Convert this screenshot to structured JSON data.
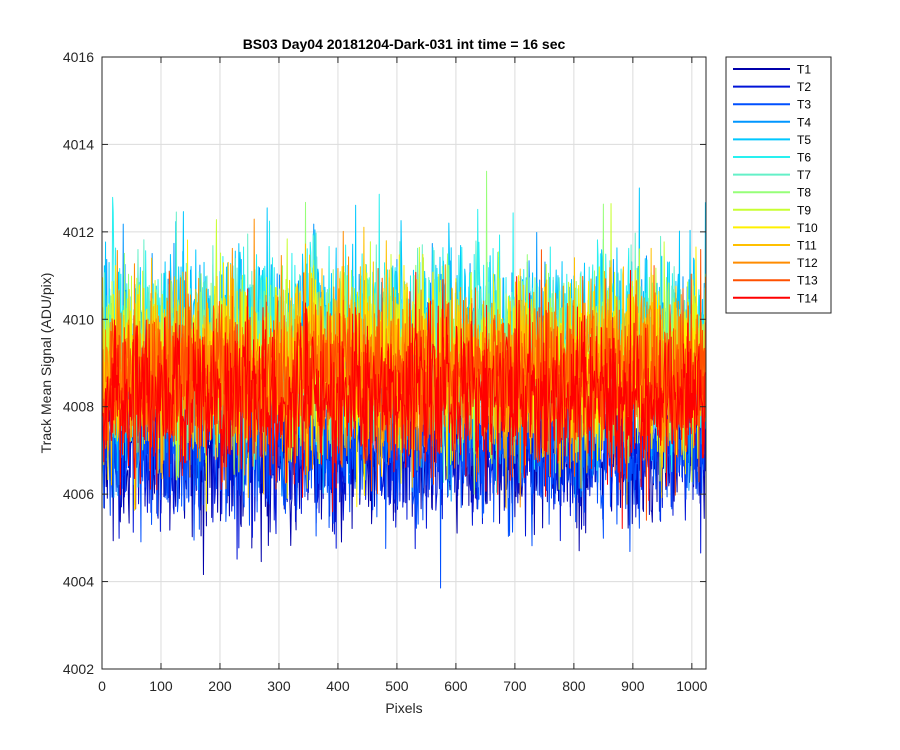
{
  "chart_data": {
    "type": "line",
    "title": "BS03 Day04 20181204-Dark-031 int time = 16 sec",
    "xlabel": "Pixels",
    "ylabel": "Track Mean Signal (ADU/pix)",
    "xlim": [
      0,
      1024
    ],
    "ylim": [
      4002,
      4016
    ],
    "xticks": [
      0,
      100,
      200,
      300,
      400,
      500,
      600,
      700,
      800,
      900,
      1000
    ],
    "yticks": [
      4002,
      4004,
      4006,
      4008,
      4010,
      4012,
      4014,
      4016
    ],
    "grid": true,
    "legend_position": "outside-top-right",
    "note": "Dense noisy dark-frame traces; per-pixel values are not individually legible. Each series is summarized by an approximate mean and spread read from the figure.",
    "series": [
      {
        "name": "T1",
        "color": "#0000AA",
        "mean": 4007.0,
        "std": 0.9,
        "min": 4004.1,
        "max": 4012.2
      },
      {
        "name": "T2",
        "color": "#0014D8",
        "mean": 4007.1,
        "std": 0.9,
        "min": 4004.5,
        "max": 4011.8
      },
      {
        "name": "T3",
        "color": "#0050FF",
        "mean": 4007.2,
        "std": 0.9,
        "min": 4003.4,
        "max": 4012.9
      },
      {
        "name": "T4",
        "color": "#0096FF",
        "mean": 4009.0,
        "std": 1.1,
        "min": 4005.8,
        "max": 4014.7
      },
      {
        "name": "T5",
        "color": "#00C8FF",
        "mean": 4009.6,
        "std": 1.0,
        "min": 4006.0,
        "max": 4014.4
      },
      {
        "name": "T6",
        "color": "#28F0F0",
        "mean": 4009.4,
        "std": 1.0,
        "min": 4006.0,
        "max": 4013.6
      },
      {
        "name": "T7",
        "color": "#64F0C8",
        "mean": 4009.2,
        "std": 1.0,
        "min": 4006.0,
        "max": 4013.4
      },
      {
        "name": "T8",
        "color": "#96FF78",
        "mean": 4009.0,
        "std": 1.0,
        "min": 4005.9,
        "max": 4013.7
      },
      {
        "name": "T9",
        "color": "#C8FF32",
        "mean": 4009.0,
        "std": 1.0,
        "min": 4005.9,
        "max": 4013.2
      },
      {
        "name": "T10",
        "color": "#FFF000",
        "mean": 4008.9,
        "std": 1.0,
        "min": 4005.6,
        "max": 4013.1
      },
      {
        "name": "T11",
        "color": "#FFC000",
        "mean": 4008.8,
        "std": 1.0,
        "min": 4005.6,
        "max": 4012.8
      },
      {
        "name": "T12",
        "color": "#FF8C00",
        "mean": 4008.8,
        "std": 1.0,
        "min": 4005.5,
        "max": 4013.8
      },
      {
        "name": "T13",
        "color": "#FF5000",
        "mean": 4008.7,
        "std": 1.0,
        "min": 4005.3,
        "max": 4012.6
      },
      {
        "name": "T14",
        "color": "#FF0000",
        "mean": 4008.2,
        "std": 0.9,
        "min": 4004.8,
        "max": 4011.8
      }
    ]
  }
}
